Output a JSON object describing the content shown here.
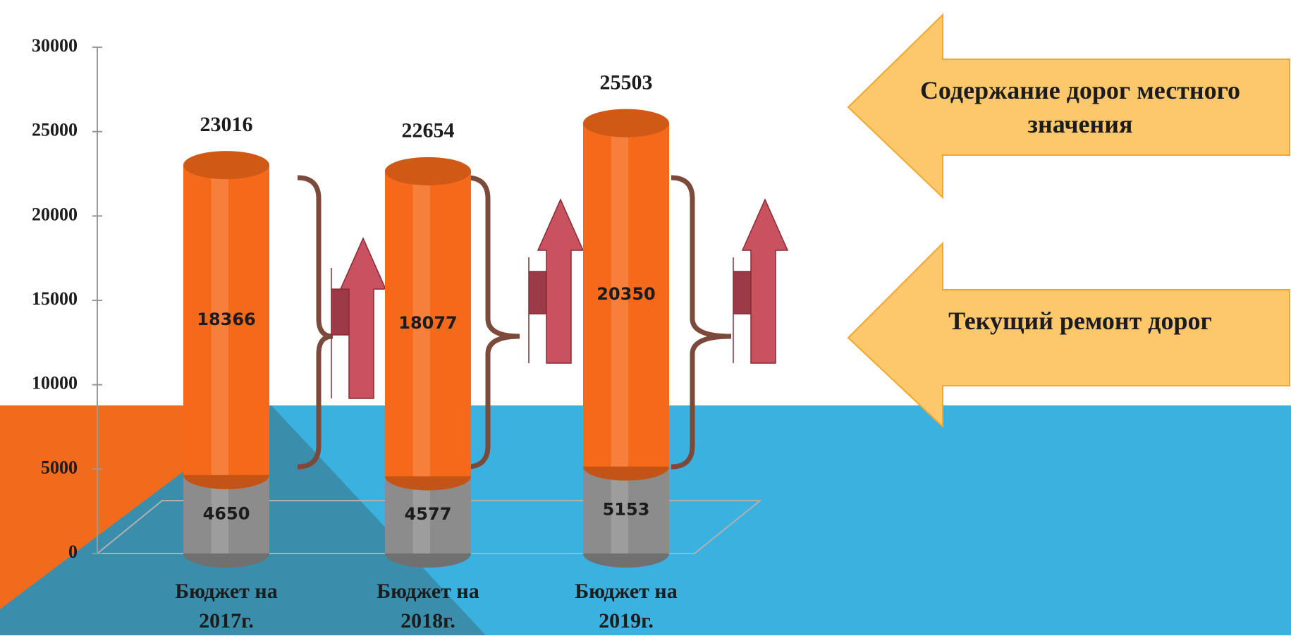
{
  "chart_data": {
    "type": "bar",
    "categories": [
      "Бюджет на 2017г.",
      "Бюджет на 2018г.",
      "Бюджет на 2019г."
    ],
    "series": [
      {
        "name": "Текущий ремонт дорог",
        "color": "#8c8c8c",
        "values": [
          4650,
          4577,
          5153
        ]
      },
      {
        "name": "Содержание дорог местного значения",
        "color": "#f5691a",
        "values": [
          18366,
          18077,
          20350
        ]
      }
    ],
    "totals": [
      23016,
      22654,
      25503
    ],
    "ylim": [
      0,
      30000
    ],
    "yticks": [
      0,
      5000,
      10000,
      15000,
      20000,
      25000,
      30000
    ],
    "stacked": true,
    "grid": false,
    "legend": "right"
  }
}
